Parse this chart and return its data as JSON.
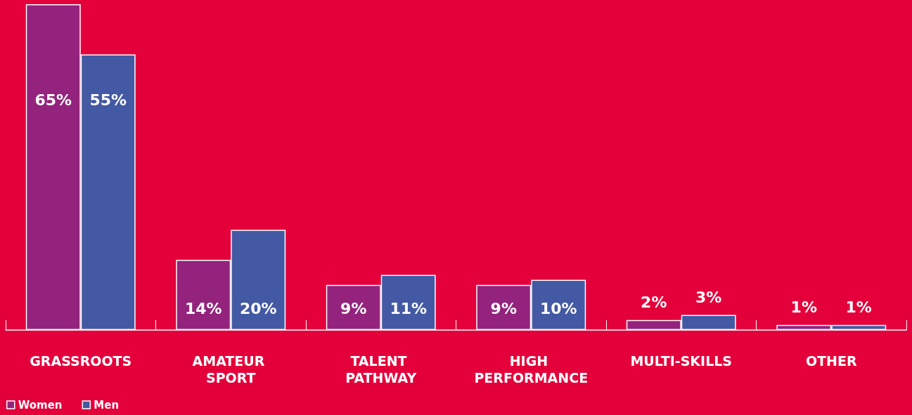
{
  "chart_data": {
    "type": "bar",
    "categories": [
      "GRASSROOTS",
      "AMATEUR SPORT",
      "TALENT PATHWAY",
      "HIGH PERFORMANCE",
      "MULTI-SKILLS",
      "OTHER"
    ],
    "series": [
      {
        "name": "Women",
        "color": "#93237d",
        "values": [
          65,
          14,
          9,
          9,
          2,
          1
        ],
        "value_labels": [
          "65%",
          "14%",
          "9%",
          "9%",
          "2%",
          "1%"
        ]
      },
      {
        "name": "Men",
        "color": "#4459a3",
        "values": [
          55,
          20,
          11,
          10,
          3,
          1
        ],
        "value_labels": [
          "55%",
          "20%",
          "11%",
          "10%",
          "3%",
          "1%"
        ]
      }
    ],
    "legend": "bottom left",
    "grid": false
  }
}
